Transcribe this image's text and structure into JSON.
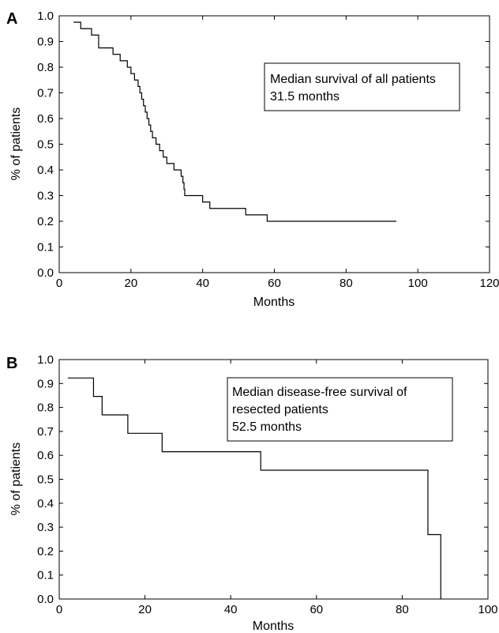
{
  "chart_data": [
    {
      "type": "line",
      "panel_label": "A",
      "xlabel": "Months",
      "ylabel": "% of patients",
      "xlim": [
        0,
        120
      ],
      "ylim": [
        0.0,
        1.0
      ],
      "x_ticks": [
        "0",
        "20",
        "40",
        "60",
        "80",
        "100",
        "120"
      ],
      "y_ticks": [
        "0.0",
        "0.1",
        "0.2",
        "0.3",
        "0.4",
        "0.5",
        "0.6",
        "0.7",
        "0.8",
        "0.9",
        "1.0"
      ],
      "annotation": [
        "Median survival of all patients",
        "31.5 months"
      ],
      "series": [
        {
          "step": "post",
          "x": [
            4,
            6,
            9,
            11,
            15,
            17,
            19,
            20,
            21,
            22,
            22.5,
            23,
            23.5,
            24,
            24.5,
            25,
            25.5,
            26,
            27,
            28,
            29,
            30,
            32,
            34,
            34.5,
            34.8,
            35,
            40,
            42,
            52,
            58,
            94
          ],
          "y": [
            0.975,
            0.95,
            0.925,
            0.875,
            0.85,
            0.825,
            0.8,
            0.775,
            0.75,
            0.725,
            0.7,
            0.675,
            0.65,
            0.625,
            0.6,
            0.575,
            0.55,
            0.525,
            0.5,
            0.475,
            0.45,
            0.425,
            0.4,
            0.375,
            0.35,
            0.325,
            0.3,
            0.275,
            0.25,
            0.225,
            0.2,
            0.2
          ],
          "values": [
            0.975,
            0.95,
            0.925,
            0.875,
            0.85,
            0.825,
            0.8,
            0.775,
            0.75,
            0.725,
            0.7,
            0.675,
            0.65,
            0.625,
            0.6,
            0.575,
            0.55,
            0.525,
            0.5,
            0.475,
            0.45,
            0.425,
            0.4,
            0.375,
            0.35,
            0.325,
            0.3,
            0.275,
            0.25,
            0.225,
            0.2,
            0.2
          ]
        }
      ]
    },
    {
      "type": "line",
      "panel_label": "B",
      "xlabel": "Months",
      "ylabel": "% of patients",
      "xlim": [
        0,
        100
      ],
      "ylim": [
        0.0,
        1.0
      ],
      "x_ticks": [
        "0",
        "20",
        "40",
        "60",
        "80",
        "100"
      ],
      "y_ticks": [
        "0.0",
        "0.1",
        "0.2",
        "0.3",
        "0.4",
        "0.5",
        "0.6",
        "0.7",
        "0.8",
        "0.9",
        "1.0"
      ],
      "annotation": [
        "Median disease-free survival of",
        "resected patients",
        "52.5 months"
      ],
      "series": [
        {
          "step": "post",
          "x": [
            2,
            8,
            10,
            16,
            24,
            47,
            86,
            89
          ],
          "y": [
            0.923,
            0.846,
            0.769,
            0.692,
            0.615,
            0.538,
            0.269,
            0.0
          ],
          "values": [
            0.923,
            0.846,
            0.769,
            0.692,
            0.615,
            0.538,
            0.269,
            0.0
          ]
        }
      ]
    }
  ]
}
